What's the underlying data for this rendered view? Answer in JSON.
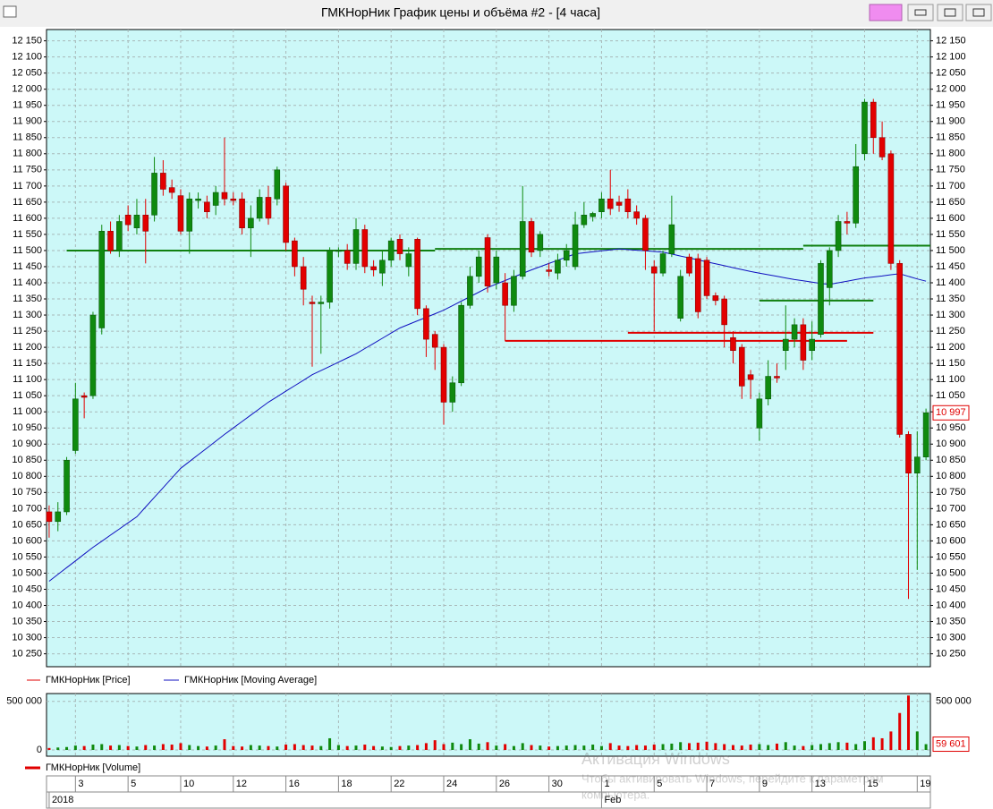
{
  "window": {
    "title": "ГМКНорНик График цены и объёма #2 - [4 часа]"
  },
  "chart_data": {
    "type": "candlestick",
    "price_name": "ГМКНорНик [Price]",
    "up_color": "#0f8a0f",
    "down_color": "#e20000",
    "open": [
      10690,
      10660,
      10690,
      10880,
      11050,
      11050,
      11260,
      11560,
      11500,
      11610,
      11570,
      11610,
      11610,
      11740,
      11695,
      11670,
      11560,
      11655,
      11650,
      11640,
      11680,
      11660,
      11660,
      11570,
      11600,
      11665,
      11660,
      11700,
      11530,
      11450,
      11340,
      11335,
      11340,
      11500,
      11500,
      11460,
      11565,
      11450,
      11430,
      11470,
      11535,
      11450,
      11535,
      11320,
      11240,
      11200,
      11030,
      11090,
      11330,
      11420,
      11540,
      11400,
      11400,
      11330,
      11420,
      11590,
      11500,
      11440,
      11430,
      11470,
      11450,
      11580,
      11605,
      11620,
      11660,
      11650,
      11660,
      11620,
      11600,
      11450,
      11430,
      11490,
      11290,
      11480,
      11475,
      11470,
      11360,
      11350,
      11230,
      11200,
      11115,
      10950,
      11040,
      11110,
      11190,
      11225,
      11270,
      11190,
      11240,
      11385,
      11500,
      11590,
      11585,
      11800,
      11960,
      11850,
      11800,
      11460,
      10930,
      10810,
      10860
    ],
    "high": [
      10710,
      10720,
      10860,
      11090,
      11060,
      11310,
      11580,
      11590,
      11610,
      11640,
      11660,
      11660,
      11790,
      11780,
      11720,
      11690,
      11680,
      11680,
      11670,
      11700,
      11850,
      11680,
      11680,
      11640,
      11690,
      11700,
      11760,
      11710,
      11540,
      11480,
      11360,
      11360,
      11510,
      11510,
      11520,
      11600,
      11580,
      11470,
      11500,
      11540,
      11550,
      11510,
      11540,
      11330,
      11250,
      11210,
      11110,
      11340,
      11450,
      11500,
      11550,
      11500,
      11430,
      11440,
      11700,
      11600,
      11560,
      11460,
      11490,
      11520,
      11620,
      11650,
      11620,
      11680,
      11750,
      11670,
      11690,
      11640,
      11610,
      11470,
      11500,
      11670,
      11440,
      11490,
      11490,
      11480,
      11370,
      11360,
      11250,
      11210,
      11130,
      11060,
      11160,
      11150,
      11330,
      11290,
      11290,
      11280,
      11470,
      11510,
      11610,
      11620,
      11830,
      11970,
      11970,
      11900,
      11810,
      11470,
      10940,
      10940,
      11010
    ],
    "low": [
      10610,
      10630,
      10680,
      10870,
      10980,
      11040,
      11240,
      11490,
      11480,
      11560,
      11550,
      11460,
      11590,
      11670,
      11660,
      11550,
      11490,
      11630,
      11600,
      11610,
      11640,
      11640,
      11550,
      11480,
      11590,
      11580,
      11640,
      11500,
      11420,
      11330,
      11140,
      11180,
      11320,
      11480,
      11440,
      11440,
      11430,
      11420,
      11390,
      11450,
      11470,
      11420,
      11300,
      11170,
      11130,
      10960,
      11000,
      11080,
      11320,
      11400,
      11370,
      11380,
      11220,
      11310,
      11410,
      11480,
      11480,
      11420,
      11410,
      11450,
      11440,
      11570,
      11590,
      11600,
      11610,
      11620,
      11600,
      11580,
      11440,
      11250,
      11420,
      11480,
      11280,
      11420,
      11290,
      11350,
      11330,
      11200,
      11150,
      11040,
      11040,
      10910,
      11020,
      11090,
      11130,
      11200,
      11130,
      11160,
      11230,
      11330,
      11480,
      11550,
      11570,
      11780,
      11800,
      11780,
      11440,
      10920,
      10420,
      10510,
      10850
    ],
    "close": [
      10660,
      10690,
      10850,
      11040,
      11045,
      11300,
      11560,
      11500,
      11590,
      11580,
      11610,
      11560,
      11740,
      11690,
      11680,
      11560,
      11660,
      11660,
      11620,
      11680,
      11660,
      11655,
      11570,
      11600,
      11665,
      11600,
      11750,
      11525,
      11450,
      11380,
      11335,
      11340,
      11500,
      11500,
      11460,
      11565,
      11450,
      11440,
      11470,
      11530,
      11490,
      11490,
      11320,
      11225,
      11200,
      11030,
      11090,
      11330,
      11420,
      11480,
      11390,
      11480,
      11330,
      11420,
      11590,
      11495,
      11550,
      11435,
      11470,
      11500,
      11580,
      11610,
      11615,
      11660,
      11630,
      11640,
      11620,
      11600,
      11500,
      11430,
      11490,
      11580,
      11420,
      11430,
      11310,
      11360,
      11345,
      11270,
      11190,
      11080,
      11100,
      11040,
      11110,
      11105,
      11225,
      11270,
      11160,
      11225,
      11460,
      11500,
      11590,
      11585,
      11760,
      11960,
      11850,
      11790,
      11460,
      10930,
      10810,
      10860,
      10997
    ],
    "last_price_label": "10 997",
    "moving_average": {
      "name": "ГМКНорНик [Moving Average]",
      "color": "#1010c0",
      "values": [
        10475,
        10496,
        10517,
        10538,
        10559,
        10580,
        10599,
        10618,
        10637,
        10656,
        10675,
        10705,
        10735,
        10765,
        10795,
        10825,
        10846,
        10867,
        10888,
        10909,
        10930,
        10950,
        10970,
        10990,
        11010,
        11030,
        11047,
        11064,
        11081,
        11098,
        11115,
        11128,
        11141,
        11154,
        11167,
        11180,
        11196,
        11212,
        11228,
        11244,
        11260,
        11271,
        11282,
        11293,
        11304,
        11315,
        11329,
        11343,
        11357,
        11371,
        11385,
        11396,
        11407,
        11418,
        11429,
        11440,
        11450,
        11460,
        11470,
        11480,
        11490,
        11493,
        11496,
        11499,
        11502,
        11505,
        11503,
        11501,
        11499,
        11497,
        11495,
        11489,
        11483,
        11477,
        11471,
        11465,
        11459,
        11453,
        11447,
        11441,
        11435,
        11430,
        11425,
        11420,
        11415,
        11410,
        11406,
        11402,
        11398,
        11395,
        11400,
        11405,
        11410,
        11415,
        11418,
        11421,
        11425,
        11428,
        11420,
        11412,
        11405
      ]
    },
    "levels": [
      {
        "value": 11500,
        "color": "#108010",
        "start": 2,
        "end": 44
      },
      {
        "value": 11505,
        "color": "#108010",
        "start": 44,
        "end": 86
      },
      {
        "value": 11515,
        "color": "#108010",
        "start": 86,
        "end": 100.5
      },
      {
        "value": 11220,
        "color": "#e00000",
        "start": 52,
        "end": 91
      },
      {
        "value": 11245,
        "color": "#e00000",
        "start": 66,
        "end": 94
      },
      {
        "value": 11345,
        "color": "#108010",
        "start": 81,
        "end": 94
      }
    ],
    "xlim": [
      -0.3,
      100.5
    ],
    "ylim": [
      10210,
      12185
    ],
    "yticks": [
      {
        "value": 10250,
        "label": "10 250"
      },
      {
        "value": 10300,
        "label": "10 300"
      },
      {
        "value": 10350,
        "label": "10 350"
      },
      {
        "value": 10400,
        "label": "10 400"
      },
      {
        "value": 10450,
        "label": "10 450"
      },
      {
        "value": 10500,
        "label": "10 500"
      },
      {
        "value": 10550,
        "label": "10 550"
      },
      {
        "value": 10600,
        "label": "10 600"
      },
      {
        "value": 10650,
        "label": "10 650"
      },
      {
        "value": 10700,
        "label": "10 700"
      },
      {
        "value": 10750,
        "label": "10 750"
      },
      {
        "value": 10800,
        "label": "10 800"
      },
      {
        "value": 10850,
        "label": "10 850"
      },
      {
        "value": 10900,
        "label": "10 900"
      },
      {
        "value": 10950,
        "label": "10 950"
      },
      {
        "value": 11000,
        "label": "11 000"
      },
      {
        "value": 11050,
        "label": "11 050"
      },
      {
        "value": 11100,
        "label": "11 100"
      },
      {
        "value": 11150,
        "label": "11 150"
      },
      {
        "value": 11200,
        "label": "11 200"
      },
      {
        "value": 11250,
        "label": "11 250"
      },
      {
        "value": 11300,
        "label": "11 300"
      },
      {
        "value": 11350,
        "label": "11 350"
      },
      {
        "value": 11400,
        "label": "11 400"
      },
      {
        "value": 11450,
        "label": "11 450"
      },
      {
        "value": 11500,
        "label": "11 500"
      },
      {
        "value": 11550,
        "label": "11 550"
      },
      {
        "value": 11600,
        "label": "11 600"
      },
      {
        "value": 11650,
        "label": "11 650"
      },
      {
        "value": 11700,
        "label": "11 700"
      },
      {
        "value": 11750,
        "label": "11 750"
      },
      {
        "value": 11800,
        "label": "11 800"
      },
      {
        "value": 11850,
        "label": "11 850"
      },
      {
        "value": 11900,
        "label": "11 900"
      },
      {
        "value": 11950,
        "label": "11 950"
      },
      {
        "value": 12000,
        "label": "12 000"
      },
      {
        "value": 12050,
        "label": "12 050"
      },
      {
        "value": 12100,
        "label": "12 100"
      },
      {
        "value": 12150,
        "label": "12 150"
      }
    ],
    "xticks": [
      {
        "value": 3,
        "label": "3"
      },
      {
        "value": 9,
        "label": "5"
      },
      {
        "value": 15,
        "label": "10"
      },
      {
        "value": 21,
        "label": "12"
      },
      {
        "value": 27,
        "label": "16"
      },
      {
        "value": 33,
        "label": "18"
      },
      {
        "value": 39,
        "label": "22"
      },
      {
        "value": 45,
        "label": "24"
      },
      {
        "value": 51,
        "label": "26"
      },
      {
        "value": 57,
        "label": "30"
      },
      {
        "value": 63,
        "label": "1"
      },
      {
        "value": 69,
        "label": "5"
      },
      {
        "value": 75,
        "label": "7"
      },
      {
        "value": 81,
        "label": "9"
      },
      {
        "value": 87,
        "label": "13"
      },
      {
        "value": 93,
        "label": "15"
      },
      {
        "value": 99,
        "label": "19"
      }
    ],
    "period_labels": [
      {
        "value": 0,
        "label": "2018"
      },
      {
        "value": 63,
        "label": "Feb"
      }
    ],
    "grid": true,
    "volume": {
      "name": "ГМКНорНик [Volume]",
      "ylim": [
        0,
        580000
      ],
      "yticks": [
        0,
        {
          "value": 500000,
          "label": "500 000"
        }
      ],
      "last_value_label": "59 601",
      "values": [
        20000,
        25000,
        30000,
        45000,
        40000,
        55000,
        60000,
        45000,
        50000,
        40000,
        35000,
        50000,
        45000,
        60000,
        55000,
        70000,
        50000,
        40000,
        35000,
        45000,
        110000,
        40000,
        35000,
        50000,
        45000,
        40000,
        35000,
        55000,
        60000,
        50000,
        45000,
        40000,
        120000,
        50000,
        40000,
        45000,
        55000,
        40000,
        35000,
        30000,
        40000,
        45000,
        50000,
        70000,
        100000,
        60000,
        75000,
        60000,
        110000,
        65000,
        80000,
        45000,
        60000,
        40000,
        70000,
        50000,
        45000,
        35000,
        40000,
        45000,
        50000,
        45000,
        55000,
        40000,
        70000,
        45000,
        40000,
        50000,
        45000,
        55000,
        60000,
        65000,
        80000,
        70000,
        75000,
        85000,
        70000,
        60000,
        50000,
        45000,
        55000,
        60000,
        50000,
        65000,
        80000,
        45000,
        40000,
        50000,
        60000,
        70000,
        80000,
        75000,
        60000,
        90000,
        130000,
        120000,
        190000,
        380000,
        560000,
        190000,
        59601
      ]
    }
  },
  "watermark": {
    "title": "Активация Windows",
    "lines": [
      "Чтобы активировать Windows, перейдите к параметрам",
      "компьютера."
    ]
  }
}
